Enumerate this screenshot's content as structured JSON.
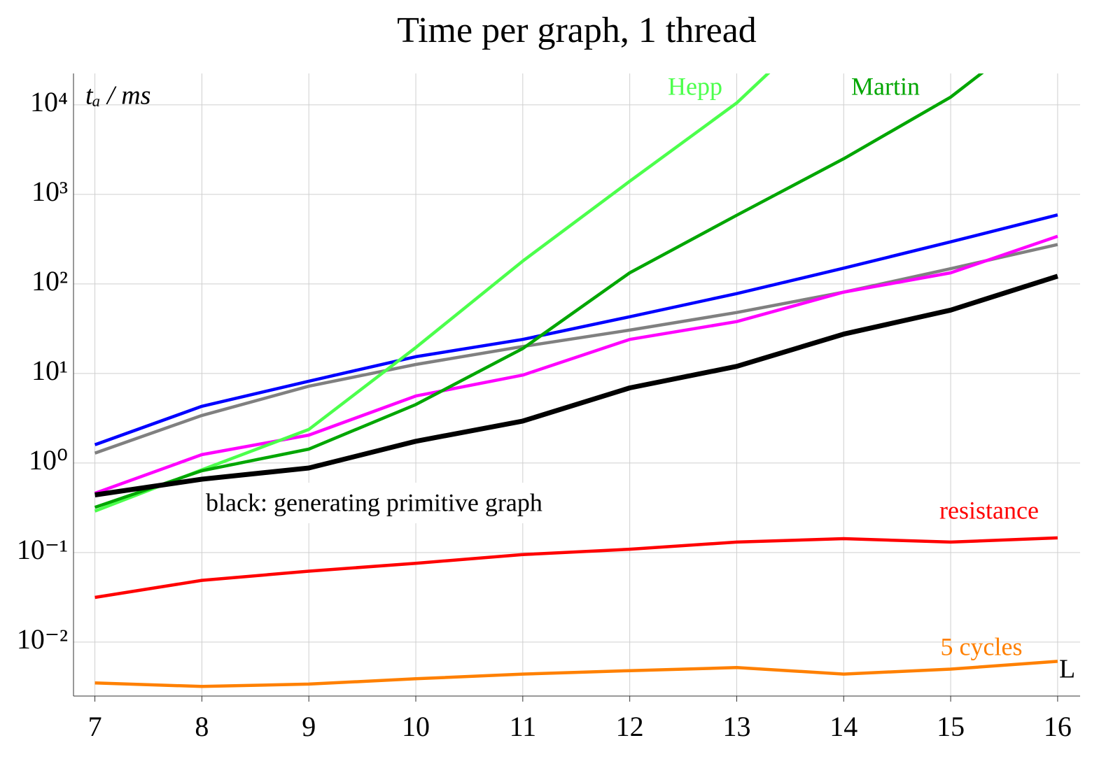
{
  "chart_data": {
    "type": "line",
    "title": "Time per graph, 1 thread",
    "y_label": "tₐ / ms",
    "annotations": [
      "black: generating primitive graph",
      "L"
    ],
    "log_y": true,
    "grid": true,
    "x": [
      7,
      8,
      9,
      10,
      11,
      12,
      13,
      14,
      15,
      16
    ],
    "xlim": [
      6.8,
      16.21
    ],
    "xticks": [
      7,
      8,
      9,
      10,
      11,
      12,
      13,
      14,
      15,
      16
    ],
    "ylim": [
      0.0025,
      22400
    ],
    "yticks": [
      {
        "value": 0.01,
        "label": "10⁻²"
      },
      {
        "value": 0.1,
        "label": "10⁻¹"
      },
      {
        "value": 1,
        "label": "10⁰"
      },
      {
        "value": 10,
        "label": "10¹"
      },
      {
        "value": 100,
        "label": "10²"
      },
      {
        "value": 1000,
        "label": "10³"
      },
      {
        "value": 10000,
        "label": "10⁴"
      }
    ],
    "series": [
      {
        "color": "#0000ff",
        "values": [
          1.6,
          4.3,
          8.2,
          15.4,
          24,
          43,
          78,
          150,
          295,
          590
        ]
      },
      {
        "color": "#808080",
        "values": [
          1.29,
          3.4,
          7.2,
          12.6,
          20,
          30.5,
          48,
          81,
          148,
          275
        ]
      },
      {
        "color": "#ff00ff",
        "values": [
          0.46,
          1.24,
          2.05,
          5.6,
          9.6,
          24,
          38,
          81,
          133,
          340
        ]
      },
      {
        "name": "Hepp",
        "color": "#4cff4c",
        "values": [
          0.29,
          0.84,
          2.37,
          19.5,
          180,
          1400,
          10500,
          140000,
          null,
          null
        ]
      },
      {
        "name": "Martin",
        "color": "#00a600",
        "values": [
          0.32,
          0.82,
          1.43,
          4.5,
          19,
          133,
          585,
          2500,
          12200,
          102000
        ]
      },
      {
        "color": "#000000",
        "values": [
          0.44,
          0.66,
          0.88,
          1.75,
          2.94,
          6.9,
          12,
          27.5,
          51,
          122
        ]
      },
      {
        "name": "resistance",
        "color": "#ff0000",
        "values": [
          0.0316,
          0.049,
          0.062,
          0.076,
          0.095,
          0.109,
          0.131,
          0.143,
          0.131,
          0.146
        ]
      },
      {
        "name": "5 cycles",
        "color": "#ff8000",
        "values": [
          0.0035,
          0.0032,
          0.0034,
          0.0039,
          0.0044,
          0.0048,
          0.0052,
          0.0044,
          0.005,
          0.0061
        ]
      }
    ]
  }
}
